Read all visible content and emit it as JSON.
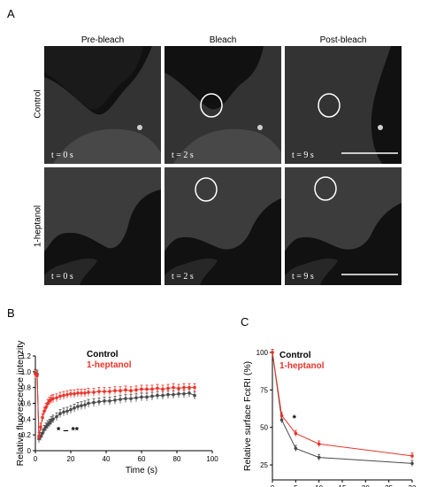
{
  "panel_a": {
    "letter": "A",
    "columns": [
      "Pre-bleach",
      "Bleach",
      "Post-bleach"
    ],
    "rows": [
      "Control",
      "1-heptanol"
    ],
    "timestamps": [
      [
        "t = 0 s",
        "t = 2 s",
        "t = 9 s"
      ],
      [
        "t = 0 s",
        "t = 2 s",
        "t = 9 s"
      ]
    ]
  },
  "chart_data": [
    {
      "panel": "B",
      "type": "line",
      "ylabel": "Relative fluorescence intenzity",
      "xlabel": "Time (s)",
      "xticks": [
        "0",
        "20",
        "40",
        "60",
        "80",
        "100"
      ],
      "yticks": [
        "0",
        "0.2",
        "0.4",
        "0.6",
        "0.8",
        "1.0",
        "1.2"
      ],
      "xlim": [
        0,
        100
      ],
      "ylim": [
        0,
        1.2
      ],
      "annotation": "* – **",
      "series": [
        {
          "name": "Control",
          "color": "#4a4a4a",
          "x": [
            0,
            1,
            2,
            3,
            4,
            5,
            6,
            7,
            8,
            9,
            10,
            12,
            14,
            16,
            18,
            20,
            22,
            24,
            26,
            28,
            30,
            33,
            36,
            39,
            42,
            45,
            48,
            51,
            54,
            57,
            60,
            63,
            66,
            69,
            72,
            75,
            78,
            81,
            84,
            87,
            90
          ],
          "y": [
            0.98,
            0.97,
            0.15,
            0.18,
            0.22,
            0.27,
            0.3,
            0.33,
            0.35,
            0.38,
            0.4,
            0.43,
            0.47,
            0.49,
            0.5,
            0.52,
            0.54,
            0.56,
            0.57,
            0.58,
            0.6,
            0.61,
            0.62,
            0.63,
            0.63,
            0.64,
            0.65,
            0.66,
            0.66,
            0.67,
            0.68,
            0.68,
            0.69,
            0.7,
            0.7,
            0.71,
            0.71,
            0.72,
            0.72,
            0.73,
            0.7
          ]
        },
        {
          "name": "1-heptanol",
          "color": "#e8342a",
          "x": [
            0,
            1,
            2,
            3,
            4,
            5,
            6,
            7,
            8,
            9,
            10,
            12,
            14,
            16,
            18,
            20,
            22,
            24,
            26,
            28,
            30,
            33,
            36,
            39,
            42,
            45,
            48,
            51,
            54,
            57,
            60,
            63,
            66,
            69,
            72,
            75,
            78,
            81,
            84,
            87,
            90
          ],
          "y": [
            0.97,
            0.95,
            0.18,
            0.3,
            0.42,
            0.5,
            0.55,
            0.6,
            0.63,
            0.65,
            0.66,
            0.67,
            0.69,
            0.7,
            0.71,
            0.72,
            0.72,
            0.73,
            0.73,
            0.73,
            0.74,
            0.74,
            0.75,
            0.75,
            0.75,
            0.76,
            0.76,
            0.77,
            0.76,
            0.77,
            0.78,
            0.78,
            0.78,
            0.79,
            0.78,
            0.79,
            0.8,
            0.79,
            0.8,
            0.8,
            0.8
          ]
        }
      ]
    },
    {
      "panel": "C",
      "type": "line",
      "ylabel": "Relative surface FcεRI (%)",
      "xlabel": "Activation (min)",
      "xticks": [
        "0",
        "5",
        "10",
        "15",
        "20",
        "25",
        "30"
      ],
      "yticks": [
        "25",
        "50",
        "75",
        "100"
      ],
      "xlim": [
        0,
        30
      ],
      "ylim": [
        15,
        100
      ],
      "annotation": "*",
      "series": [
        {
          "name": "Control",
          "color": "#4a4a4a",
          "x": [
            0,
            2,
            5,
            10,
            30
          ],
          "y": [
            100,
            55,
            36,
            30,
            26
          ]
        },
        {
          "name": "1-heptanol",
          "color": "#e8342a",
          "x": [
            0,
            2,
            5,
            10,
            30
          ],
          "y": [
            100,
            58,
            46,
            39,
            31
          ]
        }
      ]
    }
  ]
}
